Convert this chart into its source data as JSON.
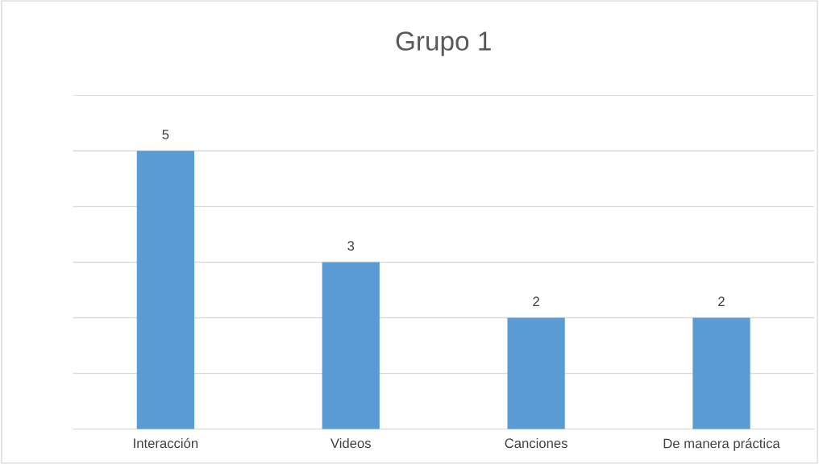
{
  "chart_data": {
    "type": "bar",
    "title": "Grupo 1",
    "categories": [
      "Interacción",
      "Videos",
      "Canciones",
      "De manera práctica"
    ],
    "values": [
      5,
      3,
      2,
      2
    ],
    "color": "#5b9bd5",
    "data_labels": true,
    "ylim": [
      0,
      6
    ],
    "yticks": [
      {
        "value": 0,
        "label": null
      },
      {
        "value": 1,
        "label": null
      },
      {
        "value": 2,
        "label": null
      },
      {
        "value": 3,
        "label": null
      },
      {
        "value": 4,
        "label": null
      },
      {
        "value": 5,
        "label": null
      },
      {
        "value": 6,
        "label": null
      }
    ],
    "grid": "y",
    "tick_labels": "x",
    "legend": false
  }
}
